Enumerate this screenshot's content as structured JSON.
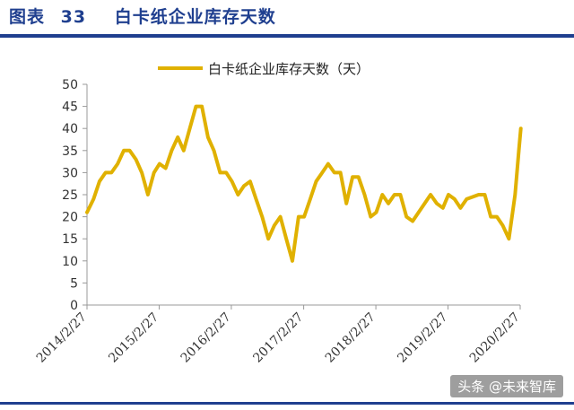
{
  "figure": {
    "label": "图表",
    "number": "33",
    "title": "白卡纸企业库存天数"
  },
  "watermark": "头条 @未来智库",
  "chart_data": {
    "type": "line",
    "title": "",
    "xlabel": "",
    "ylabel": "",
    "ylim": [
      0,
      50
    ],
    "yticks": [
      0,
      5,
      10,
      15,
      20,
      25,
      30,
      35,
      40,
      45,
      50
    ],
    "xlim": [
      "2014/2/27",
      "2020/2/27"
    ],
    "xticks": [
      "2014/2/27",
      "2015/2/27",
      "2016/2/27",
      "2017/2/27",
      "2018/2/27",
      "2019/2/27",
      "2020/2/27"
    ],
    "grid": false,
    "legend": "top-center",
    "color": "#e0b100",
    "series": [
      {
        "name": "白卡纸企业库存天数（天）",
        "x": [
          "2014/2/27",
          "2014/4/1",
          "2014/5/1",
          "2014/6/1",
          "2014/7/1",
          "2014/8/1",
          "2014/9/1",
          "2014/10/1",
          "2014/11/1",
          "2014/12/1",
          "2015/1/1",
          "2015/2/1",
          "2015/3/1",
          "2015/4/1",
          "2015/5/1",
          "2015/6/1",
          "2015/7/1",
          "2015/8/1",
          "2015/9/1",
          "2015/10/1",
          "2015/11/1",
          "2015/12/1",
          "2016/1/1",
          "2016/2/1",
          "2016/3/1",
          "2016/4/1",
          "2016/5/1",
          "2016/6/1",
          "2016/7/1",
          "2016/8/1",
          "2016/9/1",
          "2016/10/1",
          "2016/11/1",
          "2016/12/1",
          "2017/1/1",
          "2017/2/1",
          "2017/3/1",
          "2017/4/1",
          "2017/5/1",
          "2017/6/1",
          "2017/7/1",
          "2017/8/1",
          "2017/9/1",
          "2017/10/1",
          "2017/11/1",
          "2017/12/1",
          "2018/1/1",
          "2018/2/1",
          "2018/3/1",
          "2018/4/1",
          "2018/5/1",
          "2018/6/1",
          "2018/7/1",
          "2018/8/1",
          "2018/9/1",
          "2018/10/1",
          "2018/11/1",
          "2018/12/1",
          "2019/1/1",
          "2019/2/1",
          "2019/3/1",
          "2019/4/1",
          "2019/5/1",
          "2019/6/1",
          "2019/7/1",
          "2019/8/1",
          "2019/9/1",
          "2019/10/1",
          "2019/11/1",
          "2019/12/1",
          "2020/1/1",
          "2020/2/1",
          "2020/2/20",
          "2020/3/1"
        ],
        "values": [
          21,
          24,
          28,
          30,
          30,
          32,
          35,
          35,
          33,
          30,
          25,
          30,
          32,
          31,
          35,
          38,
          35,
          40,
          45,
          45,
          38,
          35,
          30,
          30,
          28,
          25,
          27,
          28,
          24,
          20,
          15,
          18,
          20,
          15,
          10,
          20,
          20,
          24,
          28,
          30,
          32,
          30,
          30,
          23,
          29,
          29,
          25,
          20,
          21,
          25,
          23,
          25,
          25,
          20,
          19,
          21,
          23,
          25,
          23,
          22,
          25,
          24,
          22,
          24,
          24.5,
          25,
          25,
          20,
          20,
          18,
          15,
          25,
          35,
          40
        ]
      }
    ]
  }
}
